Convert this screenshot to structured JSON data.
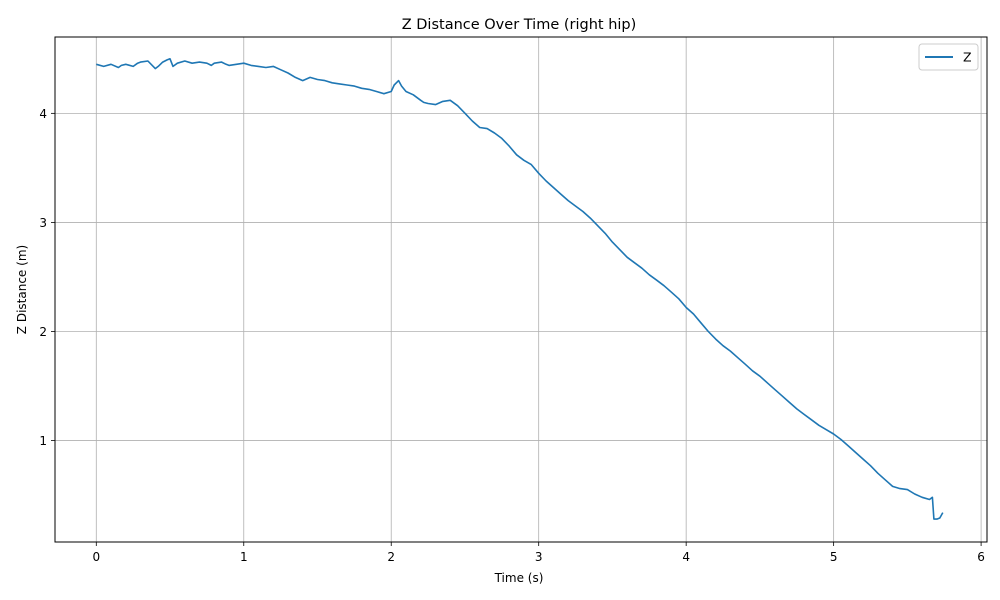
{
  "chart_data": {
    "type": "line",
    "title": "Z Distance Over Time (right hip)",
    "xlabel": "Time (s)",
    "ylabel": "Z Distance (m)",
    "xlim": [
      -0.28,
      6.04
    ],
    "ylim": [
      0.07,
      4.7
    ],
    "xticks": [
      0,
      1,
      2,
      3,
      4,
      5,
      6
    ],
    "yticks": [
      1,
      2,
      3,
      4
    ],
    "grid": true,
    "legend_position": "top-right",
    "series": [
      {
        "name": "Z",
        "color": "#1f77b4",
        "x": [
          0.0,
          0.05,
          0.1,
          0.15,
          0.17,
          0.2,
          0.25,
          0.28,
          0.3,
          0.35,
          0.4,
          0.42,
          0.45,
          0.48,
          0.5,
          0.52,
          0.55,
          0.6,
          0.65,
          0.7,
          0.75,
          0.78,
          0.8,
          0.85,
          0.88,
          0.9,
          0.95,
          1.0,
          1.05,
          1.1,
          1.15,
          1.2,
          1.25,
          1.3,
          1.35,
          1.4,
          1.45,
          1.5,
          1.55,
          1.6,
          1.65,
          1.7,
          1.75,
          1.8,
          1.85,
          1.9,
          1.95,
          2.0,
          2.02,
          2.05,
          2.07,
          2.1,
          2.15,
          2.2,
          2.22,
          2.25,
          2.3,
          2.35,
          2.4,
          2.45,
          2.5,
          2.55,
          2.6,
          2.65,
          2.7,
          2.75,
          2.8,
          2.85,
          2.9,
          2.95,
          3.0,
          3.05,
          3.1,
          3.15,
          3.2,
          3.25,
          3.3,
          3.35,
          3.4,
          3.45,
          3.5,
          3.55,
          3.6,
          3.65,
          3.7,
          3.75,
          3.8,
          3.85,
          3.9,
          3.95,
          4.0,
          4.05,
          4.1,
          4.15,
          4.2,
          4.25,
          4.3,
          4.35,
          4.4,
          4.45,
          4.5,
          4.55,
          4.6,
          4.65,
          4.7,
          4.75,
          4.8,
          4.85,
          4.9,
          4.95,
          5.0,
          5.05,
          5.1,
          5.15,
          5.2,
          5.25,
          5.3,
          5.35,
          5.4,
          5.45,
          5.5,
          5.55,
          5.6,
          5.65,
          5.67,
          5.68,
          5.7,
          5.72,
          5.74
        ],
        "y": [
          4.45,
          4.43,
          4.45,
          4.42,
          4.44,
          4.45,
          4.43,
          4.46,
          4.47,
          4.48,
          4.41,
          4.43,
          4.47,
          4.49,
          4.5,
          4.43,
          4.46,
          4.48,
          4.46,
          4.47,
          4.46,
          4.44,
          4.46,
          4.47,
          4.45,
          4.44,
          4.45,
          4.46,
          4.44,
          4.43,
          4.42,
          4.43,
          4.4,
          4.37,
          4.33,
          4.3,
          4.33,
          4.31,
          4.3,
          4.28,
          4.27,
          4.26,
          4.25,
          4.23,
          4.22,
          4.2,
          4.18,
          4.2,
          4.26,
          4.3,
          4.25,
          4.2,
          4.17,
          4.12,
          4.1,
          4.09,
          4.08,
          4.11,
          4.12,
          4.07,
          4.0,
          3.93,
          3.87,
          3.86,
          3.82,
          3.77,
          3.7,
          3.62,
          3.57,
          3.53,
          3.45,
          3.38,
          3.32,
          3.26,
          3.2,
          3.15,
          3.1,
          3.04,
          2.97,
          2.9,
          2.82,
          2.75,
          2.68,
          2.63,
          2.58,
          2.52,
          2.47,
          2.42,
          2.36,
          2.3,
          2.22,
          2.16,
          2.08,
          2.0,
          1.93,
          1.87,
          1.82,
          1.76,
          1.7,
          1.64,
          1.59,
          1.53,
          1.47,
          1.41,
          1.35,
          1.29,
          1.24,
          1.19,
          1.14,
          1.1,
          1.06,
          1.01,
          0.95,
          0.89,
          0.83,
          0.77,
          0.7,
          0.64,
          0.58,
          0.56,
          0.55,
          0.51,
          0.48,
          0.46,
          0.48,
          0.28,
          0.28,
          0.29,
          0.34
        ]
      }
    ]
  }
}
